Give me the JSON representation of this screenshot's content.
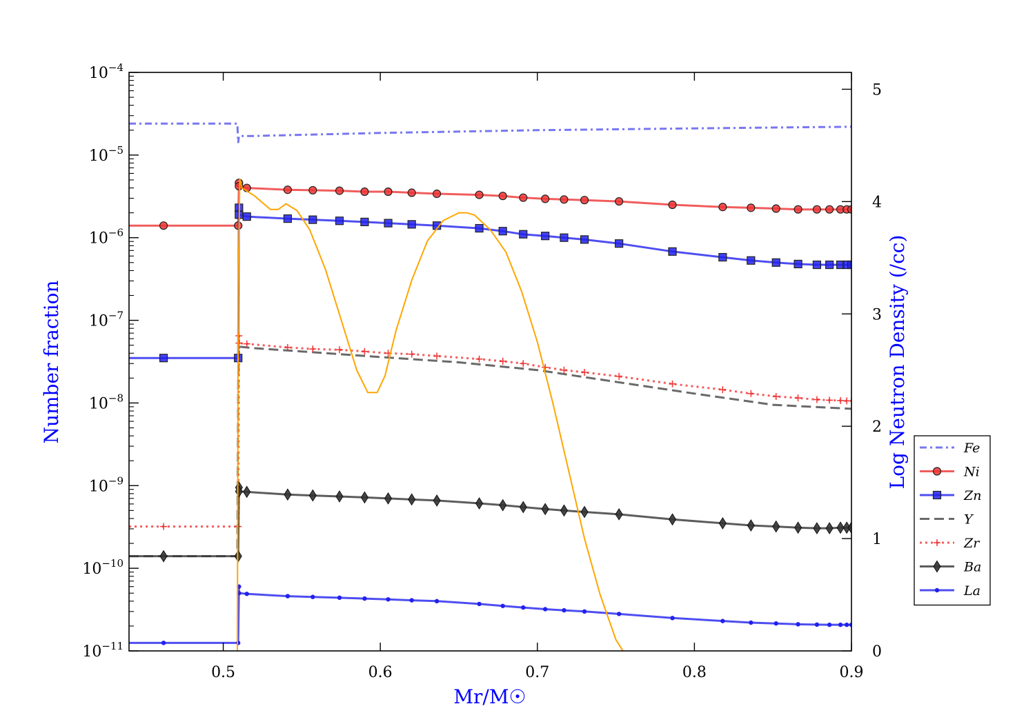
{
  "chart_data": {
    "type": "line",
    "xlabel": "Mr/M☉",
    "ylabel_left": "Number fraction",
    "ylabel_right": "Log Neutron Density (/cc)",
    "xlim": [
      0.44,
      0.9
    ],
    "ylim_left_log10": [
      -11,
      -4
    ],
    "ylim_right": [
      0,
      5.15
    ],
    "yscale_left": "log",
    "grid": false,
    "legend_position": "right",
    "x_ticks": [
      0.5,
      0.6,
      0.7,
      0.8,
      0.9
    ],
    "x_tick_labels": [
      "0.5",
      "0.6",
      "0.7",
      "0.8",
      "0.9"
    ],
    "y_left_tick_labels": [
      {
        "base": "10",
        "exp": "−4"
      },
      {
        "base": "10",
        "exp": "−5"
      },
      {
        "base": "10",
        "exp": "−6"
      },
      {
        "base": "10",
        "exp": "−7"
      },
      {
        "base": "10",
        "exp": "−8"
      },
      {
        "base": "10",
        "exp": "−9"
      },
      {
        "base": "10",
        "exp": "−10"
      },
      {
        "base": "10",
        "exp": "−11"
      }
    ],
    "y_right_ticks": [
      0,
      1,
      2,
      3,
      4,
      5
    ],
    "y_right_tick_labels": [
      "0",
      "1",
      "2",
      "3",
      "4",
      "5"
    ],
    "series": [
      {
        "name": "Fe",
        "color": "#5555ee",
        "linestyle": "dashdot",
        "marker": "none",
        "axis": "left",
        "x": [
          0.44,
          0.509,
          0.5095,
          0.51,
          0.52,
          0.6,
          0.7,
          0.8,
          0.9
        ],
        "y": [
          2.4e-05,
          2.4e-05,
          1.4e-05,
          1.7e-05,
          1.7e-05,
          1.85e-05,
          2e-05,
          2.1e-05,
          2.2e-05
        ]
      },
      {
        "name": "Ni",
        "color": "#ee3333",
        "linestyle": "solid",
        "marker": "circle",
        "axis": "left",
        "x": [
          0.44,
          0.462,
          0.509,
          0.5095,
          0.51,
          0.51,
          0.515,
          0.541,
          0.557,
          0.574,
          0.59,
          0.605,
          0.62,
          0.636,
          0.663,
          0.678,
          0.691,
          0.705,
          0.717,
          0.73,
          0.752,
          0.786,
          0.818,
          0.836,
          0.852,
          0.866,
          0.878,
          0.886,
          0.893,
          0.897,
          0.9
        ],
        "y": [
          1.4e-06,
          1.4e-06,
          1.4e-06,
          1.4e-06,
          4.6e-06,
          4.2e-06,
          4e-06,
          3.8e-06,
          3.75e-06,
          3.7e-06,
          3.6e-06,
          3.6e-06,
          3.5e-06,
          3.4e-06,
          3.3e-06,
          3.2e-06,
          3.05e-06,
          2.95e-06,
          2.9e-06,
          2.85e-06,
          2.75e-06,
          2.5e-06,
          2.35e-06,
          2.3e-06,
          2.25e-06,
          2.2e-06,
          2.2e-06,
          2.2e-06,
          2.2e-06,
          2.2e-06,
          2.2e-06
        ]
      },
      {
        "name": "Zn",
        "color": "#2222ee",
        "linestyle": "solid",
        "marker": "square",
        "axis": "left",
        "x": [
          0.44,
          0.462,
          0.509,
          0.5095,
          0.51,
          0.51,
          0.515,
          0.541,
          0.557,
          0.574,
          0.59,
          0.605,
          0.62,
          0.636,
          0.663,
          0.678,
          0.691,
          0.705,
          0.717,
          0.73,
          0.752,
          0.786,
          0.818,
          0.836,
          0.852,
          0.866,
          0.878,
          0.886,
          0.893,
          0.897,
          0.9
        ],
        "y": [
          3.5e-08,
          3.5e-08,
          3.5e-08,
          3.5e-08,
          2.3e-06,
          1.9e-06,
          1.8e-06,
          1.7e-06,
          1.65e-06,
          1.6e-06,
          1.55e-06,
          1.5e-06,
          1.45e-06,
          1.4e-06,
          1.3e-06,
          1.2e-06,
          1.1e-06,
          1.05e-06,
          1e-06,
          9.5e-07,
          8.5e-07,
          6.8e-07,
          5.8e-07,
          5.3e-07,
          5e-07,
          4.8e-07,
          4.7e-07,
          4.7e-07,
          4.7e-07,
          4.7e-07,
          4.7e-07
        ]
      },
      {
        "name": "Y",
        "color": "#444444",
        "linestyle": "dashed",
        "marker": "none",
        "axis": "left",
        "x": [
          0.44,
          0.509,
          0.5095,
          0.51,
          0.52,
          0.55,
          0.6,
          0.65,
          0.7,
          0.75,
          0.8,
          0.85,
          0.9
        ],
        "y": [
          1.4e-10,
          1.4e-10,
          2e-08,
          4.8e-08,
          4.6e-08,
          4.2e-08,
          3.6e-08,
          3.1e-08,
          2.5e-08,
          1.8e-08,
          1.3e-08,
          9.5e-09,
          8.5e-09
        ]
      },
      {
        "name": "Zr",
        "color": "#ee3333",
        "linestyle": "dotted",
        "marker": "plus",
        "axis": "left",
        "x": [
          0.44,
          0.462,
          0.509,
          0.5095,
          0.51,
          0.51,
          0.515,
          0.541,
          0.557,
          0.574,
          0.59,
          0.605,
          0.62,
          0.636,
          0.663,
          0.678,
          0.691,
          0.705,
          0.717,
          0.73,
          0.752,
          0.786,
          0.818,
          0.836,
          0.852,
          0.866,
          0.878,
          0.886,
          0.893,
          0.897,
          0.9
        ],
        "y": [
          3.2e-10,
          3.2e-10,
          3.2e-10,
          3.2e-10,
          6.5e-08,
          5.3e-08,
          5.2e-08,
          4.7e-08,
          4.5e-08,
          4.4e-08,
          4.2e-08,
          4e-08,
          3.9e-08,
          3.7e-08,
          3.4e-08,
          3.2e-08,
          3e-08,
          2.7e-08,
          2.5e-08,
          2.35e-08,
          2.1e-08,
          1.7e-08,
          1.45e-08,
          1.3e-08,
          1.2e-08,
          1.15e-08,
          1.1e-08,
          1.08e-08,
          1.07e-08,
          1.06e-08,
          1.06e-08
        ]
      },
      {
        "name": "Ba",
        "color": "#333333",
        "linestyle": "solid",
        "marker": "diamond",
        "axis": "left",
        "x": [
          0.44,
          0.462,
          0.509,
          0.5095,
          0.51,
          0.51,
          0.515,
          0.541,
          0.557,
          0.574,
          0.59,
          0.605,
          0.62,
          0.636,
          0.663,
          0.678,
          0.691,
          0.705,
          0.717,
          0.73,
          0.752,
          0.786,
          0.818,
          0.836,
          0.852,
          0.866,
          0.878,
          0.886,
          0.893,
          0.897,
          0.9
        ],
        "y": [
          1.4e-10,
          1.4e-10,
          1.4e-10,
          1.4e-10,
          9.5e-10,
          8.5e-10,
          8.4e-10,
          7.8e-10,
          7.6e-10,
          7.4e-10,
          7.2e-10,
          7e-10,
          6.8e-10,
          6.6e-10,
          6.1e-10,
          5.8e-10,
          5.5e-10,
          5.2e-10,
          5e-10,
          4.8e-10,
          4.5e-10,
          3.9e-10,
          3.5e-10,
          3.3e-10,
          3.2e-10,
          3.1e-10,
          3.05e-10,
          3.05e-10,
          3.1e-10,
          3.1e-10,
          3.1e-10
        ]
      },
      {
        "name": "La",
        "color": "#2222ee",
        "linestyle": "solid",
        "marker": "dot",
        "axis": "left",
        "x": [
          0.44,
          0.462,
          0.509,
          0.5095,
          0.51,
          0.51,
          0.515,
          0.541,
          0.557,
          0.574,
          0.59,
          0.605,
          0.62,
          0.636,
          0.663,
          0.678,
          0.691,
          0.705,
          0.717,
          0.73,
          0.752,
          0.786,
          0.818,
          0.836,
          0.852,
          0.866,
          0.878,
          0.886,
          0.893,
          0.897,
          0.9
        ],
        "y": [
          1.25e-11,
          1.25e-11,
          1.25e-11,
          1.25e-11,
          6e-11,
          5e-11,
          4.9e-11,
          4.6e-11,
          4.5e-11,
          4.4e-11,
          4.3e-11,
          4.2e-11,
          4.1e-11,
          4e-11,
          3.7e-11,
          3.5e-11,
          3.35e-11,
          3.2e-11,
          3.1e-11,
          3e-11,
          2.8e-11,
          2.5e-11,
          2.3e-11,
          2.2e-11,
          2.15e-11,
          2.1e-11,
          2.08e-11,
          2.07e-11,
          2.07e-11,
          2.07e-11,
          2.07e-11
        ]
      },
      {
        "color": "#ffa500",
        "linestyle": "solid",
        "marker": "none",
        "axis": "right",
        "x": [
          0.509,
          0.5095,
          0.5105,
          0.512,
          0.52,
          0.53,
          0.535,
          0.54,
          0.547,
          0.555,
          0.565,
          0.575,
          0.585,
          0.592,
          0.598,
          0.603,
          0.61,
          0.62,
          0.63,
          0.64,
          0.65,
          0.655,
          0.66,
          0.67,
          0.68,
          0.69,
          0.7,
          0.71,
          0.72,
          0.73,
          0.74,
          0.75,
          0.7545
        ],
        "y": [
          0,
          3.2,
          4.2,
          4.12,
          4.05,
          3.93,
          3.93,
          3.98,
          3.92,
          3.75,
          3.4,
          2.95,
          2.5,
          2.3,
          2.3,
          2.45,
          2.85,
          3.3,
          3.65,
          3.83,
          3.9,
          3.9,
          3.88,
          3.75,
          3.55,
          3.2,
          2.75,
          2.2,
          1.6,
          1.0,
          0.5,
          0.1,
          0.0
        ]
      }
    ]
  }
}
